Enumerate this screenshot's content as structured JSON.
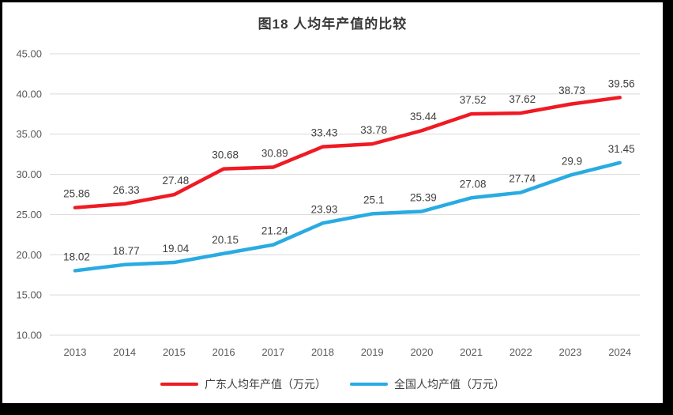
{
  "chart_data": {
    "type": "line",
    "title": "图18 人均年产值的比较",
    "categories": [
      "2013",
      "2014",
      "2015",
      "2016",
      "2017",
      "2018",
      "2019",
      "2020",
      "2021",
      "2022",
      "2023",
      "2024"
    ],
    "series": [
      {
        "name": "广东人均年产值（万元）",
        "color": "#EF1A23",
        "values": [
          25.86,
          26.33,
          27.48,
          30.68,
          30.89,
          33.43,
          33.78,
          35.44,
          37.52,
          37.62,
          38.73,
          39.56
        ],
        "labels": [
          "25.86",
          "26.33",
          "27.48",
          "30.68",
          "30.89",
          "33.43",
          "33.78",
          "35.44",
          "37.52",
          "37.62",
          "38.73",
          "39.56"
        ]
      },
      {
        "name": "全国人均产值（万元）",
        "color": "#29ABE2",
        "values": [
          18.02,
          18.77,
          19.04,
          20.15,
          21.24,
          23.93,
          25.1,
          25.39,
          27.08,
          27.74,
          29.9,
          31.45
        ],
        "labels": [
          "18.02",
          "18.77",
          "19.04",
          "20.15",
          "21.24",
          "23.93",
          "25.1",
          "25.39",
          "27.08",
          "27.74",
          "29.9",
          "31.45"
        ]
      }
    ],
    "ylim": [
      10,
      45
    ],
    "ytick_step": 5,
    "ytick_labels": [
      "10.00",
      "15.00",
      "20.00",
      "25.00",
      "30.00",
      "35.00",
      "40.00",
      "45.00"
    ],
    "grid": true,
    "legend_position": "bottom",
    "colors": {
      "gridline": "#D9D9D9",
      "axis_text": "#595959",
      "data_label": "#404040",
      "title_text": "#383838",
      "frame": "#000000",
      "background": "#FFFFFF"
    }
  }
}
